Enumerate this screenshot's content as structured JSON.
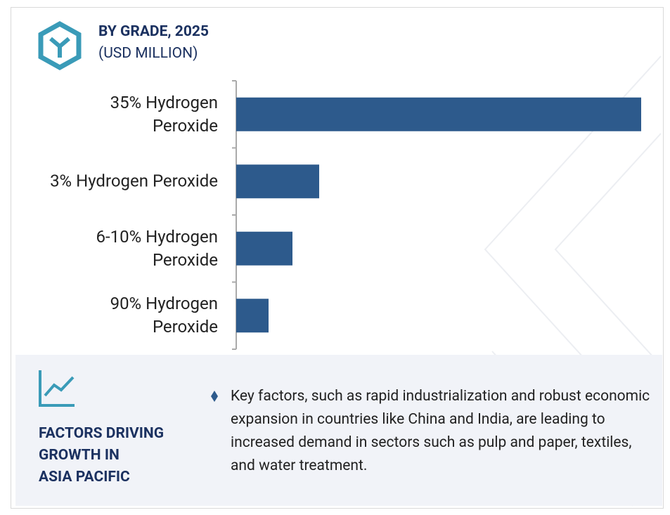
{
  "header": {
    "title": "BY GRADE, 2025",
    "subtitle": "(USD MILLION)"
  },
  "chart_data": {
    "type": "bar",
    "orientation": "horizontal",
    "categories": [
      "35% Hydrogen\nPeroxide",
      "3% Hydrogen Peroxide",
      "6-10% Hydrogen\nPeroxide",
      "90% Hydrogen\nPeroxide"
    ],
    "values": [
      57.6,
      11.8,
      8.0,
      4.6
    ],
    "color": "#2d5a8c",
    "xlim": [
      0,
      57.6
    ]
  },
  "footer": {
    "title": "FACTORS DRIVING\nGROWTH IN\nASIA PACIFIC",
    "text": "Key factors, such as rapid industrialization and robust economic expansion in countries like China and India, are leading to increased demand in sectors such as pulp and paper, textiles, and water treatment."
  }
}
